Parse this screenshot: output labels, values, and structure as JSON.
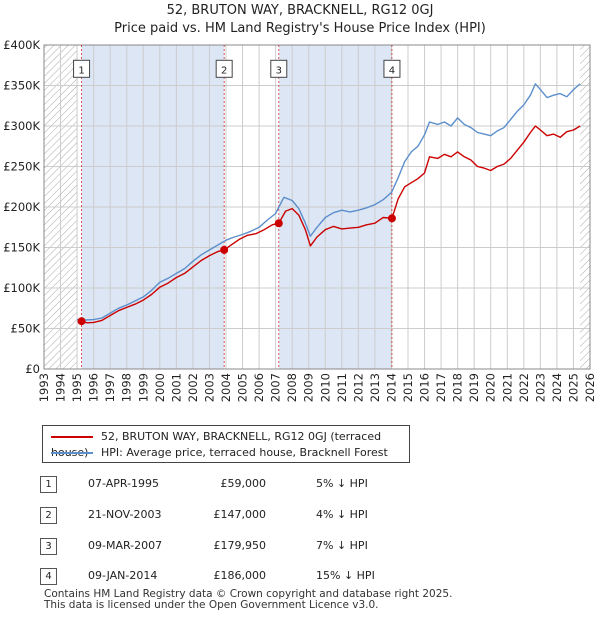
{
  "title": {
    "line1": "52, BRUTON WAY, BRACKNELL, RG12 0GJ",
    "line2": "Price paid vs. HM Land Registry's House Price Index (HPI)"
  },
  "colors": {
    "price": "#cc0000",
    "hpi": "#5b8fcc",
    "shade": "#dce6f5",
    "grid": "#cccccc",
    "hatch": "#aaaaaa"
  },
  "chart_data": {
    "type": "line",
    "title": "Price paid vs. HM Land Registry's House Price Index (HPI)",
    "xlim": [
      1993,
      2026
    ],
    "ylim": [
      0,
      400000
    ],
    "x_ticks": [
      "1993",
      "1994",
      "1995",
      "1996",
      "1997",
      "1998",
      "1999",
      "2000",
      "2001",
      "2002",
      "2003",
      "2004",
      "2005",
      "2006",
      "2007",
      "2008",
      "2009",
      "2010",
      "2011",
      "2012",
      "2013",
      "2014",
      "2015",
      "2016",
      "2017",
      "2018",
      "2019",
      "2020",
      "2021",
      "2022",
      "2023",
      "2024",
      "2025",
      "2026"
    ],
    "y_ticks": [
      {
        "value": 0,
        "label": "£0"
      },
      {
        "value": 50000,
        "label": "£50K"
      },
      {
        "value": 100000,
        "label": "£100K"
      },
      {
        "value": 150000,
        "label": "£150K"
      },
      {
        "value": 200000,
        "label": "£200K"
      },
      {
        "value": 250000,
        "label": "£250K"
      },
      {
        "value": 300000,
        "label": "£300K"
      },
      {
        "value": 350000,
        "label": "£350K"
      },
      {
        "value": 400000,
        "label": "£400K"
      }
    ],
    "data_start": 1995.0,
    "data_end": 2025.4,
    "series": [
      {
        "name": "52, BRUTON WAY, BRACKNELL, RG12 0GJ (terraced house)",
        "color": "#cc0000",
        "x": [
          1995.27,
          1995.6,
          1996.0,
          1996.5,
          1997.0,
          1997.5,
          1998.0,
          1998.5,
          1999.0,
          1999.5,
          2000.0,
          2000.5,
          2001.0,
          2001.5,
          2002.0,
          2002.5,
          2003.0,
          2003.5,
          2003.89,
          2004.3,
          2004.8,
          2005.3,
          2005.8,
          2006.3,
          2006.8,
          2007.19,
          2007.6,
          2008.0,
          2008.4,
          2008.8,
          2009.1,
          2009.5,
          2010.0,
          2010.5,
          2011.0,
          2011.5,
          2012.0,
          2012.5,
          2013.0,
          2013.5,
          2014.03,
          2014.4,
          2014.8,
          2015.2,
          2015.6,
          2016.0,
          2016.3,
          2016.8,
          2017.2,
          2017.6,
          2018.0,
          2018.4,
          2018.8,
          2019.2,
          2019.6,
          2020.0,
          2020.4,
          2020.8,
          2021.2,
          2021.6,
          2022.0,
          2022.4,
          2022.7,
          2023.0,
          2023.4,
          2023.8,
          2024.2,
          2024.6,
          2025.0,
          2025.4
        ],
        "values": [
          59000,
          57000,
          57500,
          60000,
          66000,
          72000,
          76000,
          80000,
          85000,
          92000,
          101000,
          106000,
          113000,
          118000,
          126000,
          134000,
          140000,
          145000,
          147000,
          153000,
          160000,
          165000,
          167000,
          172000,
          178000,
          179950,
          195000,
          198000,
          190000,
          172000,
          152000,
          163000,
          172000,
          176000,
          173000,
          174000,
          175000,
          178000,
          180000,
          187000,
          186000,
          210000,
          225000,
          230000,
          235000,
          242000,
          262000,
          260000,
          265000,
          262000,
          268000,
          262000,
          258000,
          250000,
          248000,
          245000,
          250000,
          253000,
          260000,
          270000,
          280000,
          292000,
          300000,
          295000,
          288000,
          290000,
          286000,
          293000,
          295000,
          300000
        ]
      },
      {
        "name": "HPI: Average price, terraced house, Bracknell Forest",
        "color": "#5b8fcc",
        "x": [
          1995.0,
          1995.5,
          1996.0,
          1996.5,
          1997.0,
          1997.5,
          1998.0,
          1998.5,
          1999.0,
          1999.5,
          2000.0,
          2000.5,
          2001.0,
          2001.5,
          2002.0,
          2002.5,
          2003.0,
          2003.5,
          2004.0,
          2004.5,
          2005.0,
          2005.5,
          2006.0,
          2006.5,
          2007.0,
          2007.5,
          2008.0,
          2008.4,
          2008.8,
          2009.1,
          2009.5,
          2010.0,
          2010.5,
          2011.0,
          2011.5,
          2012.0,
          2012.5,
          2013.0,
          2013.5,
          2014.0,
          2014.4,
          2014.8,
          2015.2,
          2015.6,
          2016.0,
          2016.3,
          2016.8,
          2017.2,
          2017.6,
          2018.0,
          2018.4,
          2018.8,
          2019.2,
          2019.6,
          2020.0,
          2020.4,
          2020.8,
          2021.2,
          2021.6,
          2022.0,
          2022.4,
          2022.7,
          2023.0,
          2023.4,
          2023.8,
          2024.2,
          2024.6,
          2025.0,
          2025.4
        ],
        "values": [
          61000,
          60500,
          61000,
          63000,
          69000,
          75000,
          79000,
          84000,
          89000,
          97000,
          107000,
          112000,
          118000,
          124000,
          133000,
          141000,
          147000,
          153000,
          159000,
          163000,
          166000,
          170000,
          175000,
          184000,
          192000,
          212000,
          208000,
          198000,
          180000,
          164000,
          175000,
          187000,
          193000,
          196000,
          194000,
          196000,
          199000,
          203000,
          209000,
          218000,
          236000,
          256000,
          268000,
          275000,
          289000,
          305000,
          302000,
          305000,
          300000,
          310000,
          302000,
          298000,
          292000,
          290000,
          288000,
          294000,
          298000,
          308000,
          318000,
          326000,
          338000,
          352000,
          345000,
          335000,
          338000,
          340000,
          336000,
          345000,
          352000
        ]
      }
    ],
    "transactions": [
      {
        "num": "1",
        "date": "07-APR-1995",
        "x": 1995.27,
        "price": 59000,
        "price_label": "£59,000",
        "hpi": "5% ↓ HPI",
        "label_value": 370000
      },
      {
        "num": "2",
        "date": "21-NOV-2003",
        "x": 2003.89,
        "price": 147000,
        "price_label": "£147,000",
        "hpi": "4% ↓ HPI",
        "label_value": 370000
      },
      {
        "num": "3",
        "date": "09-MAR-2007",
        "x": 2007.19,
        "price": 179950,
        "price_label": "£179,950",
        "hpi": "7% ↓ HPI",
        "label_value": 370000
      },
      {
        "num": "4",
        "date": "09-JAN-2014",
        "x": 2014.03,
        "price": 186000,
        "price_label": "£186,000",
        "hpi": "15% ↓ HPI",
        "label_value": 370000
      }
    ]
  },
  "legend": {
    "price_label": "52, BRUTON WAY, BRACKNELL, RG12 0GJ (terraced house)",
    "hpi_label": "HPI: Average price, terraced house, Bracknell Forest"
  },
  "footer": {
    "line1": "Contains HM Land Registry data © Crown copyright and database right 2025.",
    "line2": "This data is licensed under the Open Government Licence v3.0."
  }
}
